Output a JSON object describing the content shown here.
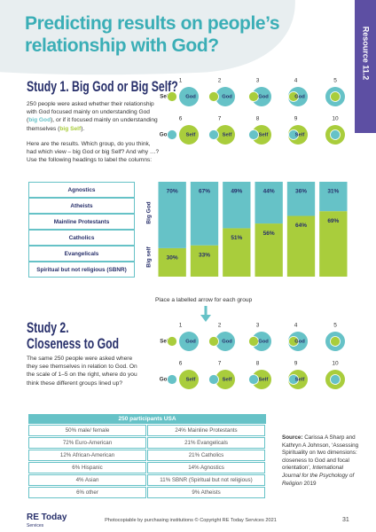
{
  "header": {
    "title": "Predicting results on people’s relationship with God?",
    "tab": "Resource 11.2"
  },
  "study1": {
    "heading": "Study 1. Big God or Big Self?",
    "intro": [
      "250 people were asked whether their relationship with God focused mainly on understanding God (",
      "big God",
      "), or if it focused mainly on understanding themselves (",
      "big Self",
      ")."
    ],
    "question": "Here are the results. Which group, do you think, had which view – big God or big Self? And why …? Use the following headings to label the columns:",
    "groups": [
      "Agnostics",
      "Atheists",
      "Mainline Protestants",
      "Catholics",
      "Evangelicals",
      "Spiritual but not religious (SBNR)"
    ]
  },
  "diagrams": [
    {
      "row1_label": "Self",
      "row1_circle": "God",
      "row2_label": "God",
      "row2_circle": "Self",
      "numbers": [
        1,
        2,
        3,
        4,
        5,
        6,
        7,
        8,
        9,
        10
      ]
    },
    {
      "row1_label": "Self",
      "row1_circle": "God",
      "row2_label": "God",
      "row2_circle": "Self",
      "numbers": [
        1,
        2,
        3,
        4,
        5,
        6,
        7,
        8,
        9,
        10
      ]
    }
  ],
  "chart_data": {
    "type": "bar",
    "stacked": true,
    "categories": [
      null,
      null,
      null,
      null,
      null,
      null
    ],
    "ylim": [
      0,
      100
    ],
    "series": [
      {
        "name": "Big self",
        "color": "#a9cd3c",
        "values": [
          30,
          33,
          51,
          56,
          64,
          69
        ],
        "value_labels": [
          "30%",
          "33%",
          "51%",
          "56%",
          "64%",
          "69%"
        ]
      },
      {
        "name": "Big God",
        "color": "#66c2c7",
        "values": [
          70,
          67,
          49,
          44,
          36,
          31
        ],
        "value_labels": [
          "70%",
          "67%",
          "49%",
          "44%",
          "36%",
          "31%"
        ]
      }
    ]
  },
  "study2": {
    "heading": [
      "Study 2.",
      "Closeness to God"
    ],
    "instruction": "Place a labelled arrow for each group",
    "text": "The same 250 people were asked where they see themselves in relation to God. On the scale of 1–5 on the right, where do you think these different groups lined up?"
  },
  "table": {
    "title": "250 participants USA",
    "rows": [
      [
        "50% male/ female",
        "24% Mainline Protestants"
      ],
      [
        "72% Euro-American",
        "21% Evangelicals"
      ],
      [
        "12% African-American",
        "21% Catholics"
      ],
      [
        "6% Hispanic",
        "14% Agnostics"
      ],
      [
        "4% Asian",
        "11% SBNR (Spiritual but not religious)"
      ],
      [
        "6% other",
        "9% Atheists"
      ]
    ]
  },
  "source": {
    "label": "Source:",
    "text": [
      "Carissa A Sharp and Kathryn A Johnson, ‘Assessing Spirituality on two dimensions: closeness to God and focal orientation’, ",
      "International Journal for the Psychology of Religion",
      " 2019"
    ]
  },
  "footer": {
    "logo": "RE Today",
    "logo_sub": "Services",
    "notice": "Photocopiable by purchasing institutions © Copyright RE Today Services 2021",
    "page": "31"
  }
}
